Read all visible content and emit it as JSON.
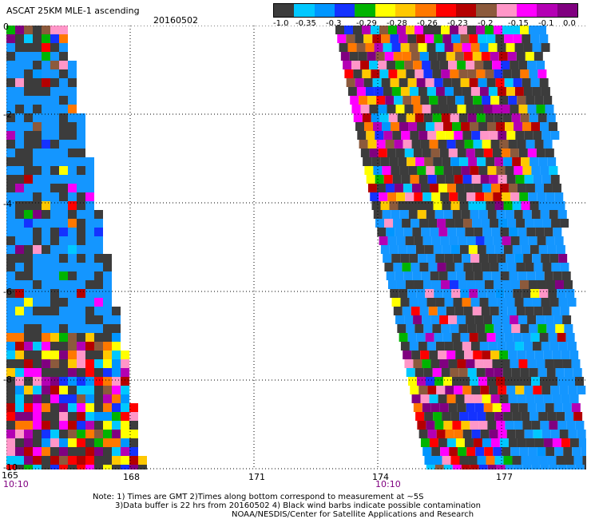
{
  "header": {
    "title": "ASCAT 25KM MLE-1 ascending",
    "date": "20160502"
  },
  "colorbar": {
    "colors": [
      "#3c3c3c",
      "#00c8ff",
      "#0096ff",
      "#1432ff",
      "#00b400",
      "#ffff00",
      "#ffc800",
      "#ff7800",
      "#ff0000",
      "#b40000",
      "#8c5a3c",
      "#ff96c8",
      "#ff00ff",
      "#b400b4",
      "#800080"
    ],
    "labels": [
      "-1.0",
      "-0.35",
      "-0.3",
      "-0.29",
      "-0.28",
      "-0.26",
      "-0.23",
      "-0.2",
      "-0.15",
      "-0.1",
      "0.0"
    ]
  },
  "map": {
    "x_ticks": [
      "165",
      "168",
      "171",
      "174",
      "177"
    ],
    "y_ticks": [
      "0",
      "-2",
      "-4",
      "-6",
      "-8",
      "-10"
    ],
    "time_labels": [
      "10:10",
      "10:10"
    ],
    "background_color": "#ffffff",
    "water_color": "#1496ff",
    "grid": true,
    "lon_range": [
      165,
      180
    ],
    "lat_range": [
      -10,
      0
    ]
  },
  "notes": {
    "line1": "Note: 1) Times are GMT 2)Times along bottom correspond to measurement at ~5S",
    "line2": "3)Data buffer is 22 hrs from 20160502 4) Black wind barbs indicate possible contamination",
    "line3": "NOAA/NESDIS/Center for Satellite Applications and Research"
  }
}
